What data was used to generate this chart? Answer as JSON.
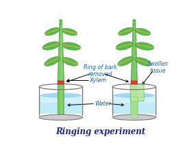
{
  "title": "Ringing experiment",
  "title_color": "#1a237e",
  "title_fontsize": 8.5,
  "label_ring_bark": "Ring of bark\nremoved",
  "label_xylem": "Xylem",
  "label_water": "Water",
  "label_swollen": "Swollen\ntissue",
  "label_color": "#1565c0",
  "stem_color": "#7dc96a",
  "stem_dark": "#4a9e3a",
  "stem_light": "#a8e090",
  "leaf_color": "#5cb84a",
  "leaf_dark": "#3d8c2a",
  "leaf_vein": "#e8b84a",
  "ring_color": "#e53935",
  "water_color_top": "#aadcf0",
  "water_color_bot": "#e8f8ff",
  "beaker_edge": "#777777",
  "beaker_bottom": "#cccccc",
  "bg_color": "#ffffff",
  "swollen_color": "#b8e8a0",
  "right_stem_lower": "#b8e8a0"
}
